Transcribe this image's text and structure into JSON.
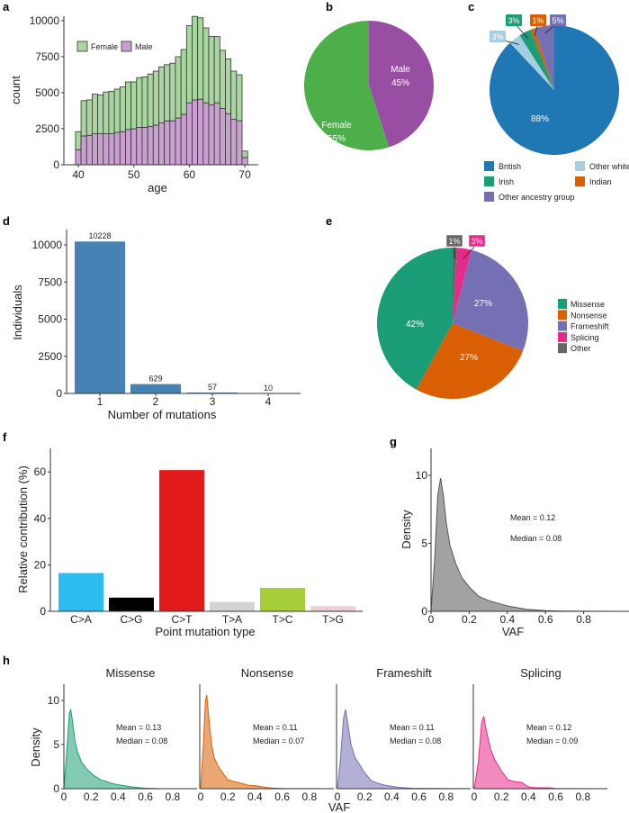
{
  "chart_data": [
    {
      "panel": "a",
      "type": "bar",
      "stacked": true,
      "xlabel": "age",
      "ylabel": "count",
      "ylim": [
        0,
        10000
      ],
      "yticks": [
        0,
        2500,
        5000,
        7500,
        10000
      ],
      "xticks": [
        40,
        50,
        60,
        70
      ],
      "legend": "top-left",
      "x": [
        40,
        41,
        42,
        43,
        44,
        45,
        46,
        47,
        48,
        49,
        50,
        51,
        52,
        53,
        54,
        55,
        56,
        57,
        58,
        59,
        60,
        61,
        62,
        63,
        64,
        65,
        66,
        67,
        68,
        69,
        70
      ],
      "series": [
        {
          "name": "Male",
          "color": "#c9a0d0",
          "values": [
            1050,
            2000,
            2050,
            2150,
            2150,
            2150,
            2150,
            2250,
            2300,
            2450,
            2500,
            2600,
            2600,
            2650,
            2750,
            2900,
            3050,
            3050,
            3250,
            3500,
            4300,
            4500,
            4550,
            4300,
            4150,
            4300,
            3900,
            3550,
            3150,
            3050,
            500
          ]
        },
        {
          "name": "Female",
          "color": "#a8d5a0",
          "values": [
            1250,
            2450,
            2450,
            2750,
            2700,
            2900,
            2950,
            3000,
            3100,
            3300,
            3250,
            3450,
            3500,
            3650,
            3750,
            3900,
            3900,
            4000,
            4250,
            4500,
            5350,
            5800,
            5650,
            5200,
            4750,
            4600,
            4050,
            3800,
            3350,
            3200,
            450
          ]
        }
      ]
    },
    {
      "panel": "b",
      "type": "pie",
      "slices": [
        {
          "label": "Male",
          "value": 45,
          "text": "45%",
          "color": "#984ea3"
        },
        {
          "label": "Female",
          "value": 55,
          "text": "55%",
          "color": "#4daf4a"
        }
      ]
    },
    {
      "panel": "c",
      "type": "pie",
      "legend": "bottom",
      "slices": [
        {
          "label": "British",
          "value": 88,
          "text": "88%",
          "color": "#1f77b4"
        },
        {
          "label": "Other white",
          "value": 3,
          "text": "3%",
          "color": "#a6cee3"
        },
        {
          "label": "Irish",
          "value": 3,
          "text": "3%",
          "color": "#1b9e77"
        },
        {
          "label": "Indian",
          "value": 1,
          "text": "1%",
          "color": "#d95f02"
        },
        {
          "label": "Other ancestry group",
          "value": 5,
          "text": "5%",
          "color": "#7570b3"
        }
      ]
    },
    {
      "panel": "d",
      "type": "bar",
      "xlabel": "Number of mutations",
      "ylabel": "Individuals",
      "ylim": [
        0,
        11000
      ],
      "yticks": [
        0,
        2500,
        5000,
        7500,
        10000
      ],
      "categories": [
        "1",
        "2",
        "3",
        "4"
      ],
      "values": [
        10228,
        629,
        57,
        10
      ],
      "labels": [
        "10228",
        "629",
        "57",
        "10"
      ],
      "color": "#4682b4"
    },
    {
      "panel": "e",
      "type": "pie",
      "legend": "right",
      "slices": [
        {
          "label": "Other",
          "value": 1,
          "text": "1%",
          "color": "#666666"
        },
        {
          "label": "Splicing",
          "value": 3,
          "text": "3%",
          "color": "#e7298a"
        },
        {
          "label": "Frameshift",
          "value": 27,
          "text": "27%",
          "color": "#7570b3"
        },
        {
          "label": "Nonsense",
          "value": 27,
          "text": "27%",
          "color": "#d95f02"
        },
        {
          "label": "Missense",
          "value": 42,
          "text": "42%",
          "color": "#1b9e77"
        }
      ],
      "legend_order": [
        "Missense",
        "Nonsense",
        "Frameshift",
        "Splicing",
        "Other"
      ]
    },
    {
      "panel": "f",
      "type": "bar",
      "xlabel": "Point mutation type",
      "ylabel": "Relative contribution (%)",
      "ylim": [
        0,
        70
      ],
      "yticks": [
        0,
        20,
        40,
        60
      ],
      "categories": [
        "C>A",
        "C>G",
        "C>T",
        "T>A",
        "T>C",
        "T>G"
      ],
      "values": [
        16.5,
        5.9,
        60.8,
        4.0,
        10.1,
        2.2
      ],
      "colors": [
        "#2dbdef",
        "#000000",
        "#e31a1c",
        "#d3d3d3",
        "#a6ce39",
        "#eccfd3"
      ]
    },
    {
      "panel": "g",
      "type": "area",
      "xlabel": "VAF",
      "ylabel": "Density",
      "xlim": [
        0,
        1
      ],
      "ylim": [
        0,
        12
      ],
      "xticks": [
        0,
        0.2,
        0.4,
        0.6,
        0.8
      ],
      "yticks": [
        0,
        5,
        10
      ],
      "color": "#999999",
      "annotations": [
        "Mean = 0.12",
        "Median = 0.08"
      ],
      "points": [
        [
          0,
          0
        ],
        [
          0.02,
          4
        ],
        [
          0.035,
          8.5
        ],
        [
          0.05,
          9.8
        ],
        [
          0.065,
          8.5
        ],
        [
          0.08,
          6.5
        ],
        [
          0.1,
          4.8
        ],
        [
          0.13,
          3.5
        ],
        [
          0.16,
          2.5
        ],
        [
          0.2,
          1.8
        ],
        [
          0.25,
          1.1
        ],
        [
          0.3,
          0.8
        ],
        [
          0.35,
          0.6
        ],
        [
          0.4,
          0.4
        ],
        [
          0.5,
          0.15
        ],
        [
          0.6,
          0.05
        ],
        [
          0.7,
          0.02
        ],
        [
          0.97,
          0
        ]
      ]
    },
    {
      "panel": "h",
      "type": "area",
      "xlabel": "VAF",
      "ylabel": "Density",
      "xlim": [
        0,
        1
      ],
      "ylim": [
        0,
        12
      ],
      "xticks": [
        0,
        0.2,
        0.4,
        0.6,
        0.8
      ],
      "yticks": [
        0,
        5,
        10
      ],
      "facets": [
        {
          "title": "Missense",
          "color": "#1b9e77",
          "annotations": [
            "Mean = 0.13",
            "Median = 0.08"
          ],
          "points": [
            [
              0,
              0
            ],
            [
              0.02,
              4
            ],
            [
              0.04,
              8.5
            ],
            [
              0.05,
              9
            ],
            [
              0.065,
              7.5
            ],
            [
              0.08,
              5.5
            ],
            [
              0.1,
              4.2
            ],
            [
              0.13,
              3
            ],
            [
              0.17,
              2.2
            ],
            [
              0.22,
              1.5
            ],
            [
              0.27,
              1
            ],
            [
              0.3,
              0.9
            ],
            [
              0.35,
              0.6
            ],
            [
              0.4,
              0.45
            ],
            [
              0.5,
              0.2
            ],
            [
              0.6,
              0.05
            ],
            [
              0.7,
              0.01
            ],
            [
              0.97,
              0
            ]
          ]
        },
        {
          "title": "Nonsense",
          "color": "#d95f02",
          "annotations": [
            "Mean = 0.11",
            "Median = 0.07"
          ],
          "points": [
            [
              0,
              0
            ],
            [
              0.02,
              5
            ],
            [
              0.035,
              10
            ],
            [
              0.045,
              10.6
            ],
            [
              0.06,
              8
            ],
            [
              0.08,
              5
            ],
            [
              0.1,
              3.5
            ],
            [
              0.13,
              2.5
            ],
            [
              0.17,
              1.6
            ],
            [
              0.2,
              1
            ],
            [
              0.25,
              0.8
            ],
            [
              0.3,
              0.6
            ],
            [
              0.35,
              0.4
            ],
            [
              0.4,
              0.35
            ],
            [
              0.5,
              0.1
            ],
            [
              0.6,
              0.03
            ],
            [
              0.97,
              0
            ]
          ]
        },
        {
          "title": "Frameshift",
          "color": "#7570b3",
          "annotations": [
            "Mean = 0.11",
            "Median = 0.08"
          ],
          "points": [
            [
              0,
              0
            ],
            [
              0.02,
              3
            ],
            [
              0.045,
              8
            ],
            [
              0.06,
              9
            ],
            [
              0.075,
              7.5
            ],
            [
              0.1,
              5
            ],
            [
              0.13,
              3.5
            ],
            [
              0.16,
              2.8
            ],
            [
              0.2,
              1.8
            ],
            [
              0.25,
              0.9
            ],
            [
              0.3,
              0.6
            ],
            [
              0.35,
              0.4
            ],
            [
              0.45,
              0.15
            ],
            [
              0.55,
              0.05
            ],
            [
              0.97,
              0
            ]
          ]
        },
        {
          "title": "Splicing",
          "color": "#e7298a",
          "annotations": [
            "Mean = 0.12",
            "Median = 0.09"
          ],
          "points": [
            [
              0,
              0
            ],
            [
              0.03,
              3
            ],
            [
              0.055,
              7.5
            ],
            [
              0.07,
              8.2
            ],
            [
              0.09,
              6.5
            ],
            [
              0.12,
              4.5
            ],
            [
              0.15,
              3.3
            ],
            [
              0.2,
              2
            ],
            [
              0.25,
              1
            ],
            [
              0.3,
              0.8
            ],
            [
              0.35,
              0.7
            ],
            [
              0.4,
              0.2
            ],
            [
              0.45,
              0.1
            ],
            [
              0.55,
              0.1
            ],
            [
              0.6,
              0.02
            ],
            [
              0.97,
              0
            ]
          ]
        }
      ]
    }
  ],
  "panel_labels": [
    "a",
    "b",
    "c",
    "d",
    "e",
    "f",
    "g",
    "h"
  ]
}
